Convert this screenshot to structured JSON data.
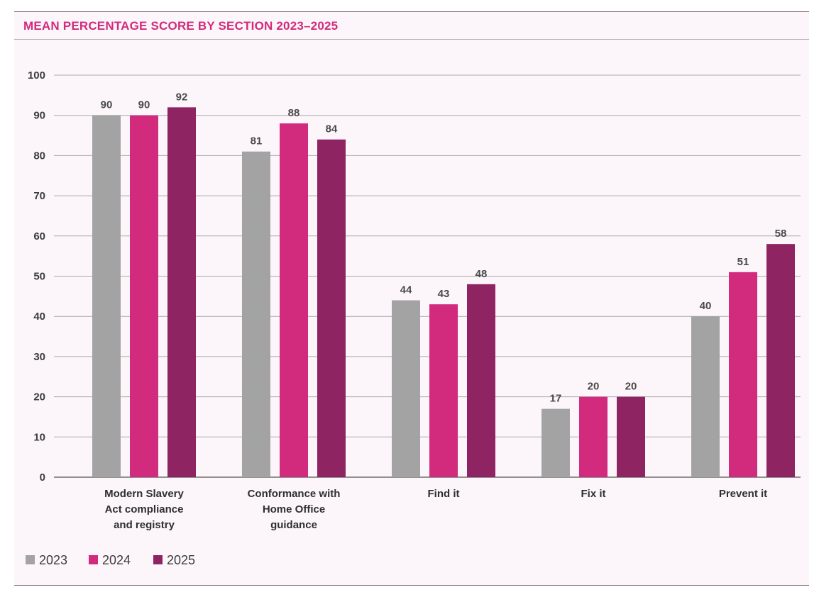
{
  "chart_data": {
    "type": "bar",
    "title": "MEAN PERCENTAGE SCORE BY SECTION 2023–2025",
    "xlabel": "",
    "ylabel": "",
    "ylim": [
      0,
      100
    ],
    "yticks": [
      0,
      10,
      20,
      30,
      40,
      50,
      60,
      70,
      80,
      90,
      100
    ],
    "grid": true,
    "legend_position": "bottom-left",
    "categories": [
      [
        "Modern Slavery",
        "Act compliance",
        "and registry"
      ],
      [
        "Conformance with",
        "Home Office",
        "guidance"
      ],
      [
        "Find it"
      ],
      [
        "Fix it"
      ],
      [
        "Prevent it"
      ]
    ],
    "series": [
      {
        "name": "2023",
        "color": "#a3a3a3",
        "values": [
          90,
          81,
          44,
          17,
          40
        ]
      },
      {
        "name": "2024",
        "color": "#d22a7c",
        "values": [
          90,
          88,
          43,
          20,
          51
        ]
      },
      {
        "name": "2025",
        "color": "#8e2461",
        "values": [
          92,
          84,
          48,
          20,
          58
        ]
      }
    ]
  }
}
